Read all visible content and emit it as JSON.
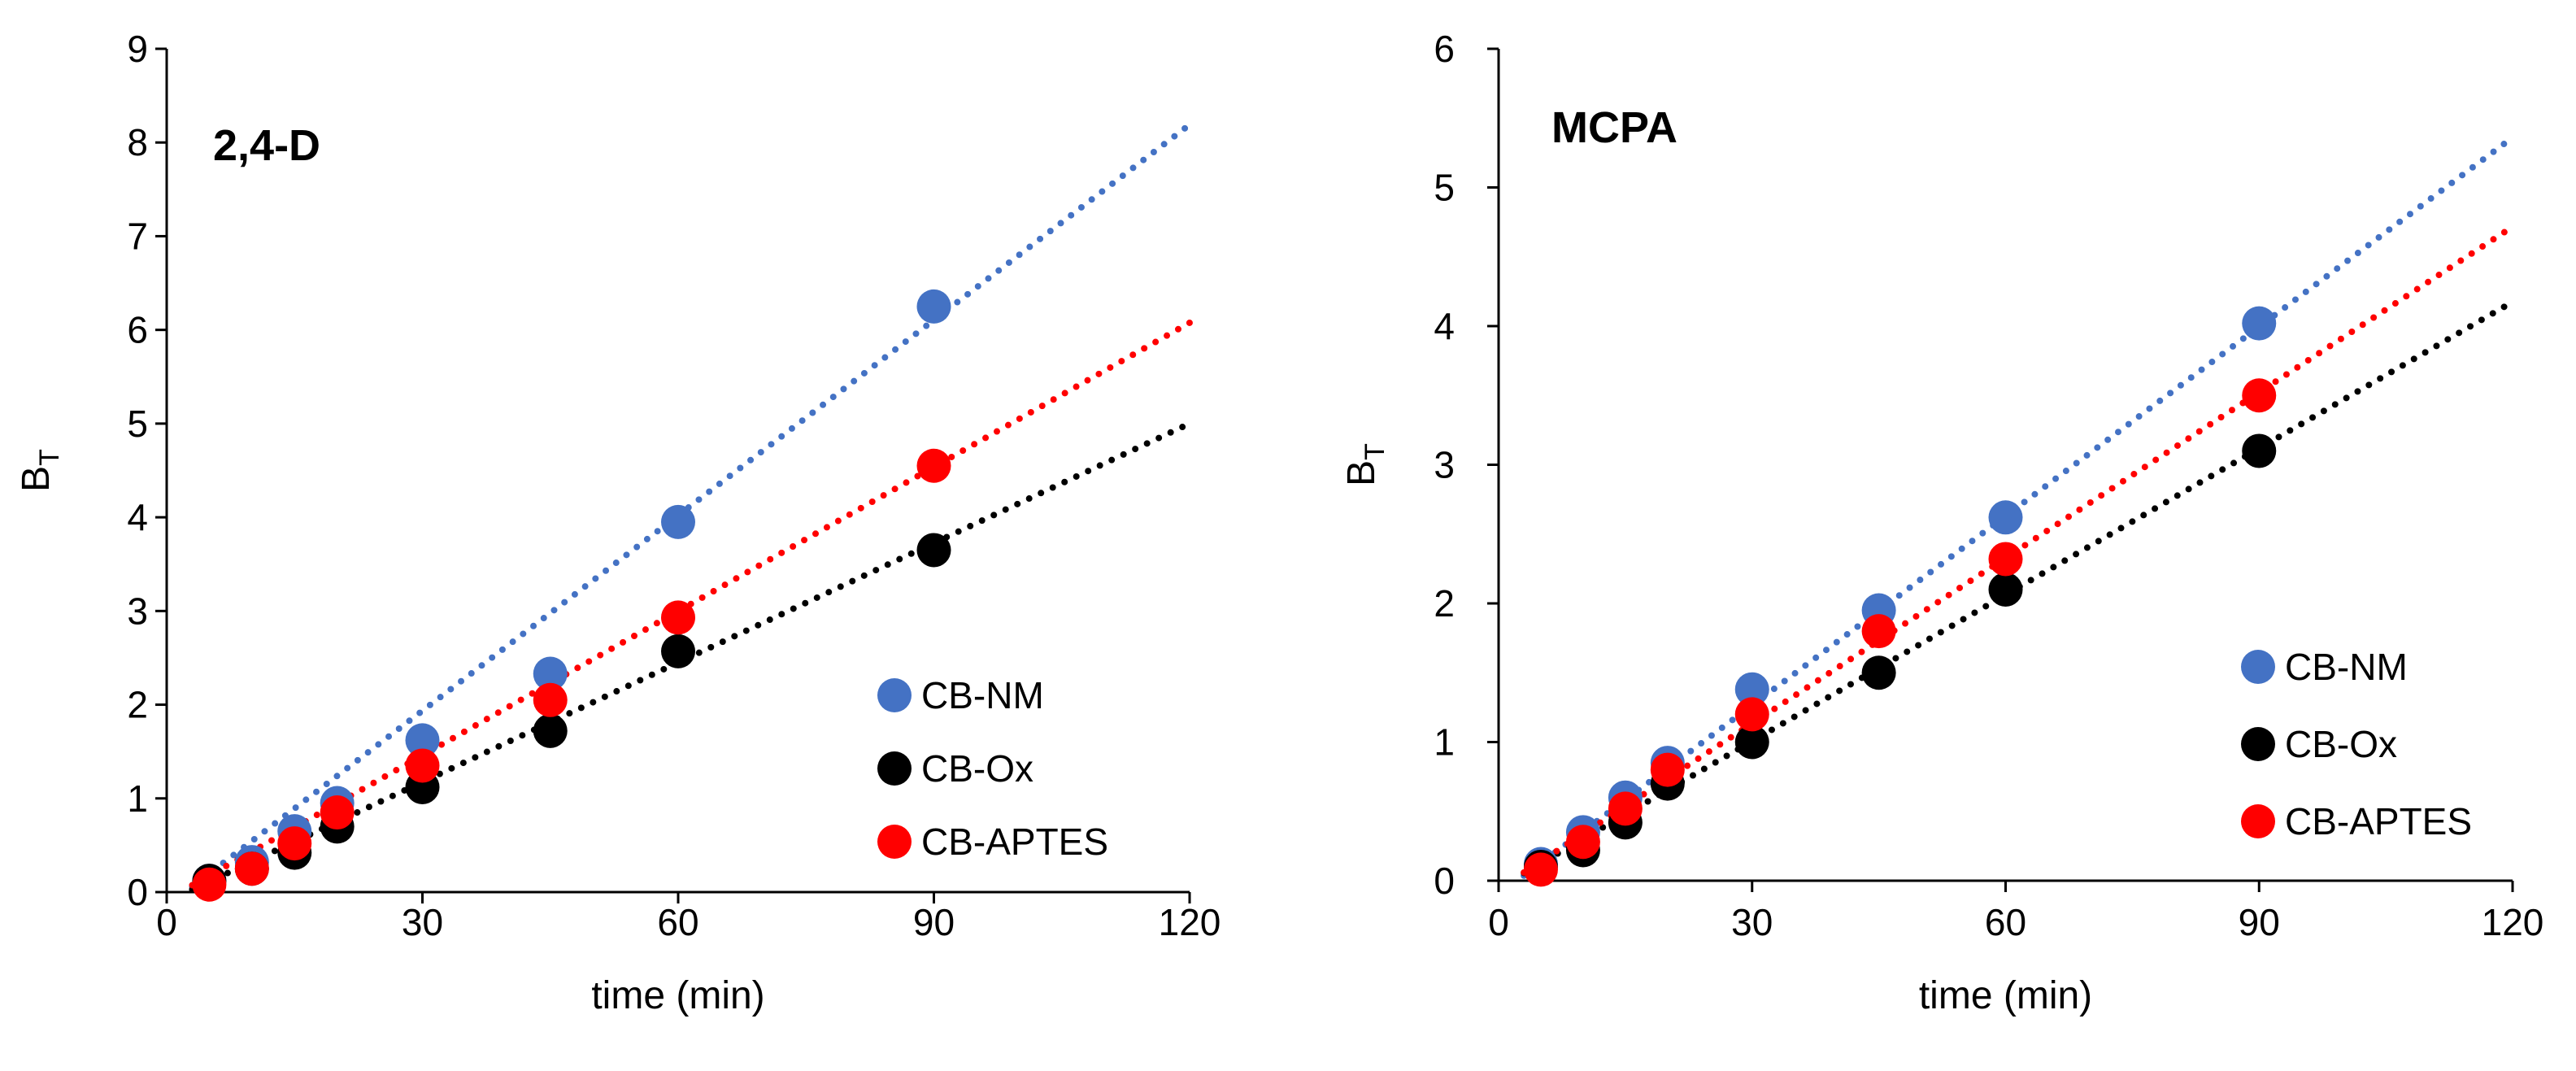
{
  "figure": {
    "description_free": true
  },
  "colors": {
    "CB-NM": "#4472c4",
    "CB-Ox": "#000000",
    "CB-APTES": "#ff0000"
  },
  "chart_data": [
    {
      "type": "scatter",
      "title": "2,4-D",
      "xlabel": "time (min)",
      "ylabel_main": "B",
      "ylabel_sub": "T",
      "xlim": [
        0,
        120
      ],
      "ylim": [
        0,
        9
      ],
      "xticks": [
        0,
        30,
        60,
        90,
        120
      ],
      "yticks": [
        0,
        1,
        2,
        3,
        4,
        5,
        6,
        7,
        8,
        9
      ],
      "grid": false,
      "legend_position": "bottom-right",
      "series": [
        {
          "name": "CB-NM",
          "color": "#4472c4",
          "x": [
            5,
            10,
            15,
            20,
            30,
            45,
            60,
            90
          ],
          "y": [
            0.12,
            0.32,
            0.65,
            0.95,
            1.62,
            2.33,
            3.95,
            6.25
          ],
          "trend": {
            "slope": 0.0695,
            "intercept": -0.15
          }
        },
        {
          "name": "CB-Ox",
          "color": "#000000",
          "x": [
            5,
            10,
            15,
            20,
            30,
            45,
            60,
            90
          ],
          "y": [
            0.12,
            0.25,
            0.42,
            0.7,
            1.12,
            1.72,
            2.57,
            3.65
          ],
          "trend": {
            "slope": 0.0425,
            "intercept": -0.1
          }
        },
        {
          "name": "CB-APTES",
          "color": "#ff0000",
          "x": [
            5,
            10,
            15,
            20,
            30,
            45,
            60,
            90
          ],
          "y": [
            0.08,
            0.25,
            0.52,
            0.85,
            1.35,
            2.05,
            2.93,
            4.55
          ],
          "trend": {
            "slope": 0.0513,
            "intercept": -0.08
          }
        }
      ]
    },
    {
      "type": "scatter",
      "title": "MCPA",
      "xlabel": "time (min)",
      "ylabel_main": "B",
      "ylabel_sub": "T",
      "xlim": [
        0,
        120
      ],
      "ylim": [
        0,
        6
      ],
      "xticks": [
        0,
        30,
        60,
        90,
        120
      ],
      "yticks": [
        0,
        1,
        2,
        3,
        4,
        5,
        6
      ],
      "grid": false,
      "legend_position": "bottom-right",
      "series": [
        {
          "name": "CB-NM",
          "color": "#4472c4",
          "x": [
            5,
            10,
            15,
            20,
            30,
            45,
            60,
            90
          ],
          "y": [
            0.12,
            0.35,
            0.6,
            0.85,
            1.38,
            1.95,
            2.62,
            4.02
          ],
          "trend": {
            "slope": 0.0455,
            "intercept": -0.1
          }
        },
        {
          "name": "CB-Ox",
          "color": "#000000",
          "x": [
            5,
            10,
            15,
            20,
            30,
            45,
            60,
            90
          ],
          "y": [
            0.1,
            0.22,
            0.42,
            0.7,
            1.0,
            1.5,
            2.1,
            3.1
          ],
          "trend": {
            "slope": 0.0352,
            "intercept": -0.05
          }
        },
        {
          "name": "CB-APTES",
          "color": "#ff0000",
          "x": [
            5,
            10,
            15,
            20,
            30,
            45,
            60,
            90
          ],
          "y": [
            0.08,
            0.28,
            0.52,
            0.8,
            1.2,
            1.8,
            2.32,
            3.5
          ],
          "trend": {
            "slope": 0.0398,
            "intercept": -0.06
          }
        }
      ]
    }
  ]
}
